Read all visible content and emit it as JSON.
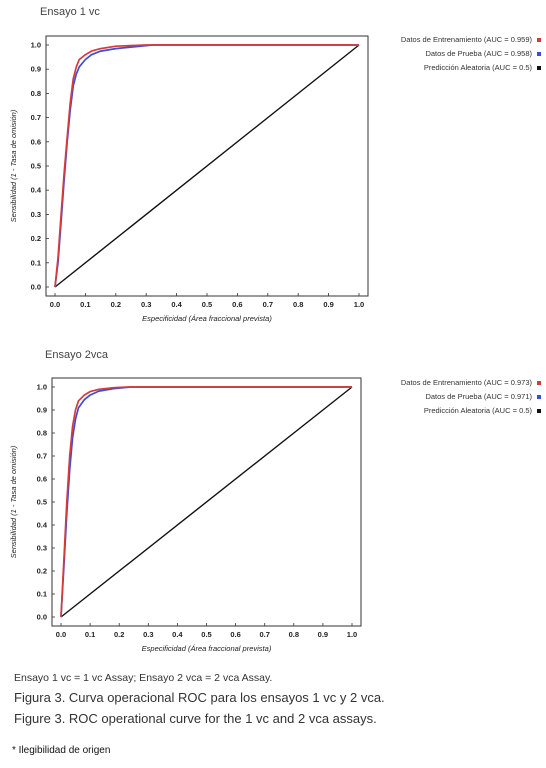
{
  "chart_data": [
    {
      "type": "line",
      "title": "Ensayo 1 vc",
      "xlabel": "Especificidad (Área fraccional prevista)",
      "ylabel": "Sensibilidad (1 - Tasa de omisión)",
      "xlim": [
        0,
        1
      ],
      "ylim": [
        0,
        1
      ],
      "xticks": [
        "0.0",
        "0.1",
        "0.2",
        "0.3",
        "0.4",
        "0.5",
        "0.6",
        "0.7",
        "0.8",
        "0.9",
        "1.0"
      ],
      "yticks": [
        "0.0",
        "0.1",
        "0.2",
        "0.3",
        "0.4",
        "0.5",
        "0.6",
        "0.7",
        "0.8",
        "0.9",
        "1.0"
      ],
      "legend_position": "right",
      "grid": false,
      "series": [
        {
          "name": "Datos de Entrenamiento (AUC = 0.959)",
          "color": "#d63a3a",
          "x": [
            0,
            0.01,
            0.02,
            0.03,
            0.04,
            0.05,
            0.06,
            0.07,
            0.08,
            0.1,
            0.12,
            0.15,
            0.2,
            0.3,
            1.0
          ],
          "y": [
            0,
            0.12,
            0.3,
            0.47,
            0.62,
            0.76,
            0.86,
            0.91,
            0.94,
            0.96,
            0.975,
            0.985,
            0.995,
            1.0,
            1.0
          ]
        },
        {
          "name": "Datos de Prueba (AUC = 0.958)",
          "color": "#3a4ed6",
          "x": [
            0,
            0.01,
            0.02,
            0.03,
            0.04,
            0.05,
            0.06,
            0.07,
            0.08,
            0.1,
            0.12,
            0.15,
            0.2,
            0.32,
            1.0
          ],
          "y": [
            0,
            0.1,
            0.27,
            0.44,
            0.6,
            0.73,
            0.83,
            0.88,
            0.91,
            0.94,
            0.96,
            0.975,
            0.985,
            1.0,
            1.0
          ]
        },
        {
          "name": "Predicción Aleatoria (AUC = 0.5)",
          "color": "#111111",
          "x": [
            0,
            1
          ],
          "y": [
            0,
            1
          ]
        }
      ]
    },
    {
      "type": "line",
      "title": "Ensayo 2vca",
      "xlabel": "Especificidad (Área fraccional prevista)",
      "ylabel": "Sensibilidad (1 - Tasa de omisión)",
      "xlim": [
        0,
        1
      ],
      "ylim": [
        0,
        1
      ],
      "xticks": [
        "0.0",
        "0.1",
        "0.2",
        "0.3",
        "0.4",
        "0.5",
        "0.6",
        "0.7",
        "0.8",
        "0.9",
        "1.0"
      ],
      "yticks": [
        "0.0",
        "0.1",
        "0.2",
        "0.3",
        "0.4",
        "0.5",
        "0.6",
        "0.7",
        "0.8",
        "0.9",
        "1.0"
      ],
      "legend_position": "right",
      "grid": false,
      "series": [
        {
          "name": "Datos de Entrenamiento (AUC = 0.973)",
          "color": "#d63a3a",
          "x": [
            0,
            0.01,
            0.02,
            0.03,
            0.04,
            0.05,
            0.06,
            0.08,
            0.1,
            0.13,
            0.18,
            0.23,
            1.0
          ],
          "y": [
            0,
            0.25,
            0.5,
            0.7,
            0.83,
            0.9,
            0.94,
            0.965,
            0.98,
            0.99,
            0.997,
            1.0,
            1.0
          ]
        },
        {
          "name": "Datos de Prueba (AUC = 0.971)",
          "color": "#3a4ed6",
          "x": [
            0,
            0.01,
            0.02,
            0.03,
            0.04,
            0.05,
            0.06,
            0.08,
            0.1,
            0.13,
            0.18,
            0.24,
            1.0
          ],
          "y": [
            0,
            0.22,
            0.45,
            0.64,
            0.78,
            0.86,
            0.91,
            0.945,
            0.965,
            0.982,
            0.993,
            1.0,
            1.0
          ]
        },
        {
          "name": "Predicción Aleatoria (AUC = 0.5)",
          "color": "#111111",
          "x": [
            0,
            1
          ],
          "y": [
            0,
            1
          ]
        }
      ]
    }
  ],
  "captions": {
    "abbrev": "Ensayo 1 vc = 1 vc Assay; Ensayo 2 vca = 2 vca Assay.",
    "figure_es": "Figura 3. Curva operacional ROC para los ensayos 1 vc y 2 vca.",
    "figure_en": "Figure 3. ROC operational curve for the 1 vc and 2 vca assays.",
    "footnote": "* Ilegibilidad de origen"
  }
}
